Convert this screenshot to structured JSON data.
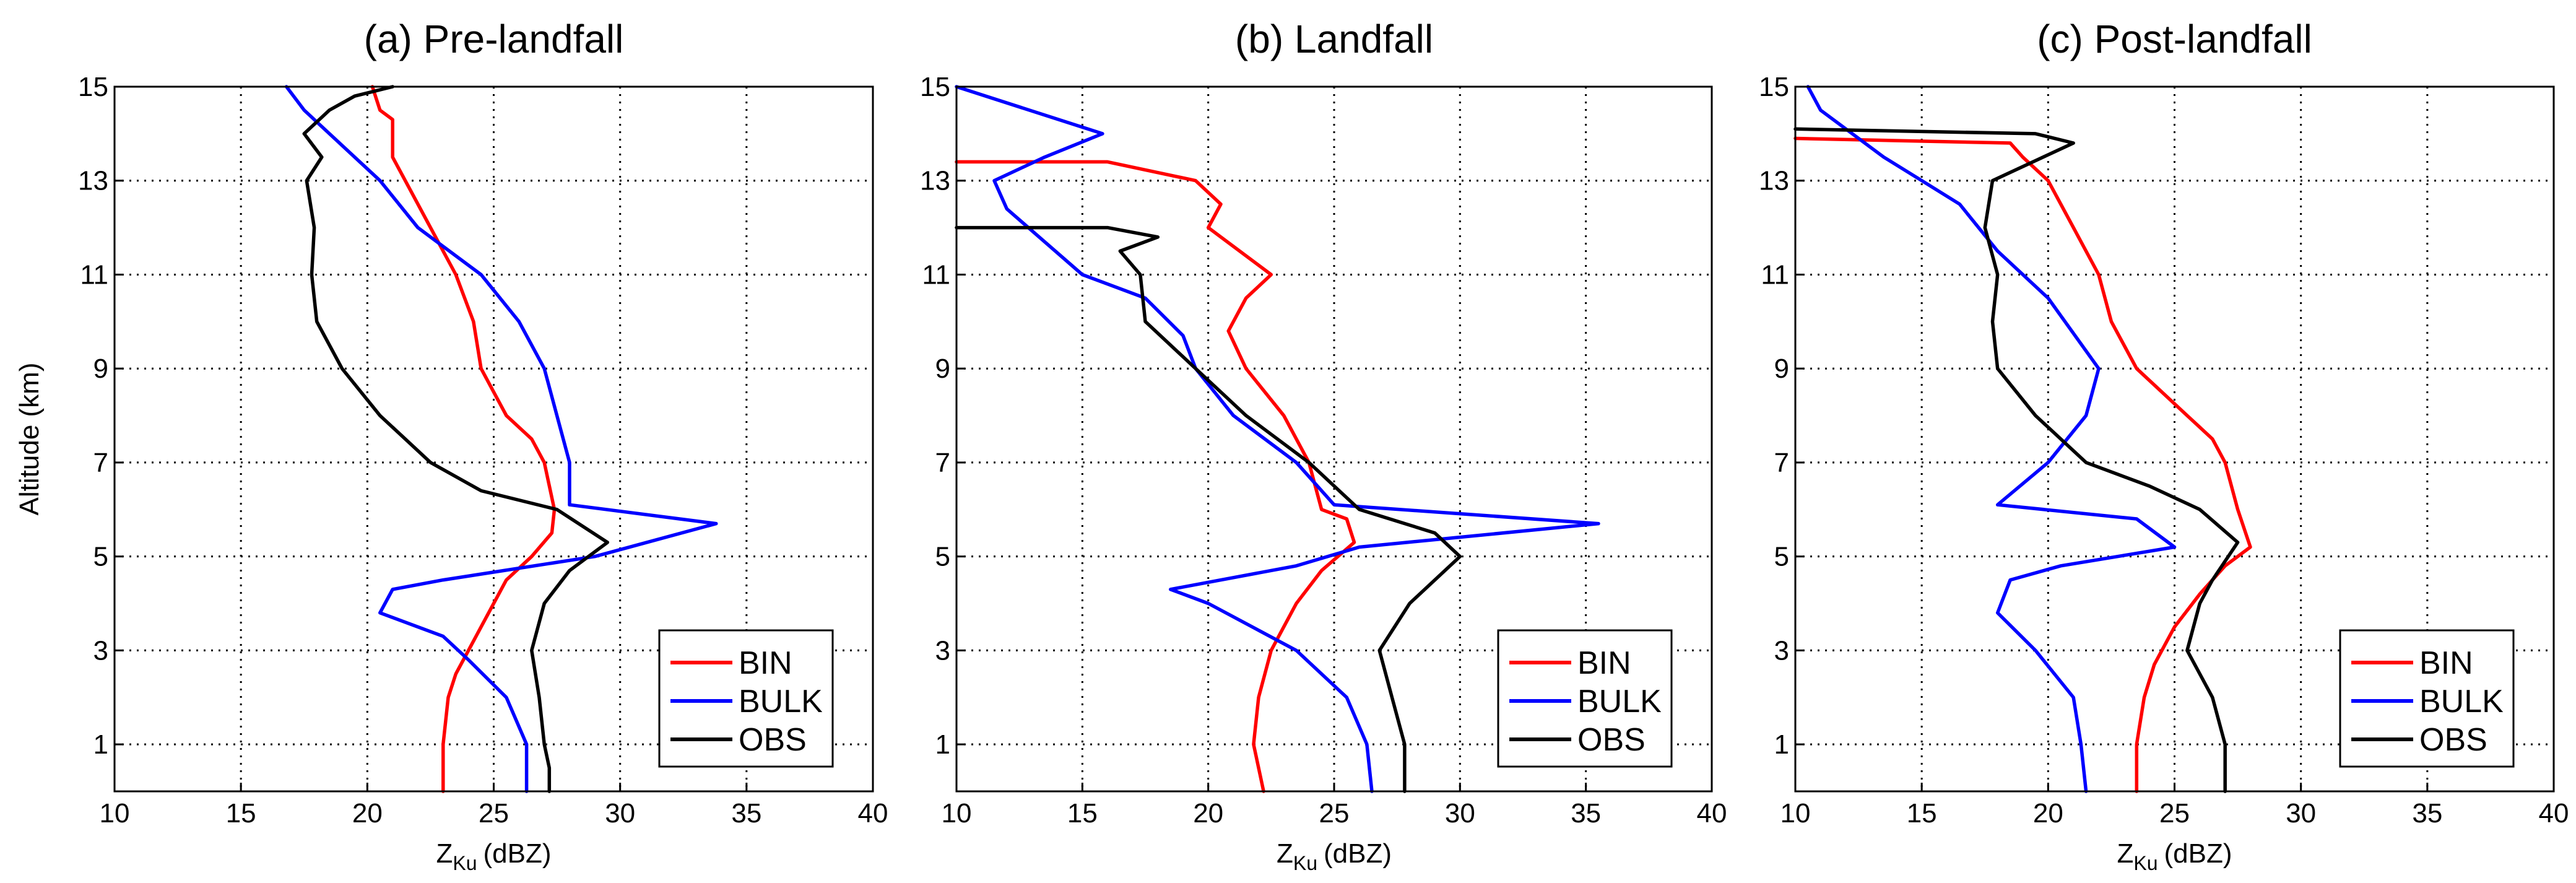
{
  "chart_data": [
    {
      "type": "line",
      "title": "(a) Pre-landfall",
      "xlabel_main": "Z",
      "xlabel_sub": "Ku",
      "xlabel_unit": "(dBZ)",
      "ylabel": "Altitude (km)",
      "xlim": [
        10,
        40
      ],
      "ylim": [
        0,
        15
      ],
      "xticks": [
        "10",
        "15",
        "20",
        "25",
        "30",
        "35",
        "40"
      ],
      "yticks": [
        "1",
        "3",
        "5",
        "7",
        "9",
        "11",
        "13",
        "15"
      ],
      "legend": [
        "BIN",
        "BULK",
        "OBS"
      ],
      "series": [
        {
          "name": "BIN",
          "color": "#ff0000",
          "points": [
            [
              23.0,
              0
            ],
            [
              23.0,
              1
            ],
            [
              23.2,
              2
            ],
            [
              23.5,
              2.5
            ],
            [
              24.0,
              3
            ],
            [
              24.8,
              3.8
            ],
            [
              25.5,
              4.5
            ],
            [
              26.5,
              5
            ],
            [
              27.3,
              5.5
            ],
            [
              27.4,
              6
            ],
            [
              27.0,
              7
            ],
            [
              26.5,
              7.5
            ],
            [
              25.5,
              8
            ],
            [
              24.5,
              9
            ],
            [
              24.2,
              10
            ],
            [
              23.5,
              11
            ],
            [
              22.5,
              12
            ],
            [
              21.5,
              13
            ],
            [
              21.0,
              13.5
            ],
            [
              21.0,
              14.3
            ],
            [
              20.5,
              14.5
            ],
            [
              20.2,
              15
            ]
          ]
        },
        {
          "name": "BULK",
          "color": "#0000ff",
          "points": [
            [
              26.3,
              0
            ],
            [
              26.3,
              1
            ],
            [
              25.5,
              2
            ],
            [
              24.0,
              2.8
            ],
            [
              23.0,
              3.3
            ],
            [
              20.5,
              3.8
            ],
            [
              21.0,
              4.3
            ],
            [
              23.0,
              4.5
            ],
            [
              29.0,
              5
            ],
            [
              33.8,
              5.7
            ],
            [
              28.0,
              6.1
            ],
            [
              28.0,
              7
            ],
            [
              27.5,
              8
            ],
            [
              27.0,
              9
            ],
            [
              26.0,
              10
            ],
            [
              24.5,
              11
            ],
            [
              22.0,
              12
            ],
            [
              20.5,
              13
            ],
            [
              18.5,
              14
            ],
            [
              17.5,
              14.5
            ],
            [
              16.8,
              15
            ]
          ]
        },
        {
          "name": "OBS",
          "color": "#000000",
          "points": [
            [
              27.2,
              0
            ],
            [
              27.2,
              0.5
            ],
            [
              27.0,
              1
            ],
            [
              26.8,
              2
            ],
            [
              26.5,
              3
            ],
            [
              27.0,
              4
            ],
            [
              28.0,
              4.7
            ],
            [
              29.5,
              5.3
            ],
            [
              27.5,
              6
            ],
            [
              24.5,
              6.4
            ],
            [
              22.5,
              7
            ],
            [
              20.5,
              8
            ],
            [
              19.0,
              9
            ],
            [
              18.0,
              10
            ],
            [
              17.8,
              11
            ],
            [
              17.9,
              12
            ],
            [
              17.6,
              13
            ],
            [
              18.2,
              13.5
            ],
            [
              17.5,
              14
            ],
            [
              18.5,
              14.5
            ],
            [
              19.5,
              14.8
            ],
            [
              21.0,
              15
            ]
          ]
        }
      ]
    },
    {
      "type": "line",
      "title": "(b) Landfall",
      "xlabel_main": "Z",
      "xlabel_sub": "Ku",
      "xlabel_unit": "(dBZ)",
      "ylabel": "",
      "xlim": [
        10,
        40
      ],
      "ylim": [
        0,
        15
      ],
      "xticks": [
        "10",
        "15",
        "20",
        "25",
        "30",
        "35",
        "40"
      ],
      "yticks": [
        "1",
        "3",
        "5",
        "7",
        "9",
        "11",
        "13",
        "15"
      ],
      "legend": [
        "BIN",
        "BULK",
        "OBS"
      ],
      "series": [
        {
          "name": "BIN",
          "color": "#ff0000",
          "points": [
            [
              22.2,
              0
            ],
            [
              21.8,
              1
            ],
            [
              22.0,
              2
            ],
            [
              22.5,
              3
            ],
            [
              23.5,
              4
            ],
            [
              24.5,
              4.7
            ],
            [
              25.8,
              5.3
            ],
            [
              25.5,
              5.8
            ],
            [
              24.5,
              6
            ],
            [
              24.0,
              7
            ],
            [
              23.0,
              8
            ],
            [
              21.5,
              9
            ],
            [
              20.8,
              9.8
            ],
            [
              21.5,
              10.5
            ],
            [
              22.5,
              11
            ],
            [
              20.0,
              12
            ],
            [
              20.5,
              12.5
            ],
            [
              19.5,
              13
            ],
            [
              16.0,
              13.4
            ],
            [
              10.0,
              13.4
            ]
          ]
        },
        {
          "name": "BULK",
          "color": "#0000ff",
          "points": [
            [
              26.5,
              0
            ],
            [
              26.3,
              1
            ],
            [
              25.5,
              2
            ],
            [
              23.5,
              3
            ],
            [
              20.0,
              4
            ],
            [
              18.5,
              4.3
            ],
            [
              23.5,
              4.8
            ],
            [
              26.0,
              5.2
            ],
            [
              35.5,
              5.7
            ],
            [
              25.0,
              6.1
            ],
            [
              23.5,
              7
            ],
            [
              21.0,
              8
            ],
            [
              19.5,
              9
            ],
            [
              19.0,
              9.7
            ],
            [
              17.5,
              10.5
            ],
            [
              15.0,
              11
            ],
            [
              12.0,
              12.4
            ],
            [
              11.5,
              13
            ],
            [
              13.5,
              13.5
            ],
            [
              15.8,
              14
            ],
            [
              10.0,
              15
            ]
          ]
        },
        {
          "name": "OBS",
          "color": "#000000",
          "points": [
            [
              27.8,
              0
            ],
            [
              27.8,
              1
            ],
            [
              27.3,
              2
            ],
            [
              26.8,
              3
            ],
            [
              28.0,
              4
            ],
            [
              30.0,
              5
            ],
            [
              29.0,
              5.5
            ],
            [
              26.0,
              6
            ],
            [
              24.0,
              7
            ],
            [
              21.5,
              8
            ],
            [
              19.5,
              9
            ],
            [
              17.5,
              10
            ],
            [
              17.3,
              11
            ],
            [
              16.5,
              11.5
            ],
            [
              18.0,
              11.8
            ],
            [
              16.0,
              12
            ],
            [
              10.0,
              12
            ]
          ]
        }
      ]
    },
    {
      "type": "line",
      "title": "(c) Post-landfall",
      "xlabel_main": "Z",
      "xlabel_sub": "Ku",
      "xlabel_unit": "(dBZ)",
      "ylabel": "",
      "xlim": [
        10,
        40
      ],
      "ylim": [
        0,
        15
      ],
      "xticks": [
        "10",
        "15",
        "20",
        "25",
        "30",
        "35",
        "40"
      ],
      "yticks": [
        "1",
        "3",
        "5",
        "7",
        "9",
        "11",
        "13",
        "15"
      ],
      "legend": [
        "BIN",
        "BULK",
        "OBS"
      ],
      "series": [
        {
          "name": "BIN",
          "color": "#ff0000",
          "points": [
            [
              23.5,
              0
            ],
            [
              23.5,
              1
            ],
            [
              23.8,
              2
            ],
            [
              24.2,
              2.7
            ],
            [
              25.0,
              3.5
            ],
            [
              26.0,
              4.2
            ],
            [
              27.0,
              4.8
            ],
            [
              28.0,
              5.2
            ],
            [
              27.5,
              6
            ],
            [
              27.0,
              7
            ],
            [
              26.5,
              7.5
            ],
            [
              25.5,
              8
            ],
            [
              23.5,
              9
            ],
            [
              22.5,
              10
            ],
            [
              22.0,
              11
            ],
            [
              21.0,
              12
            ],
            [
              20.0,
              13
            ],
            [
              19.0,
              13.5
            ],
            [
              18.5,
              13.8
            ],
            [
              10.0,
              13.9
            ]
          ]
        },
        {
          "name": "BULK",
          "color": "#0000ff",
          "points": [
            [
              21.5,
              0
            ],
            [
              21.3,
              1
            ],
            [
              21.0,
              2
            ],
            [
              19.5,
              3
            ],
            [
              18.0,
              3.8
            ],
            [
              18.5,
              4.5
            ],
            [
              20.5,
              4.8
            ],
            [
              25.0,
              5.2
            ],
            [
              23.5,
              5.8
            ],
            [
              18.0,
              6.1
            ],
            [
              20.0,
              7
            ],
            [
              21.5,
              8
            ],
            [
              22.0,
              9
            ],
            [
              20.0,
              10.5
            ],
            [
              18.0,
              11.5
            ],
            [
              16.5,
              12.5
            ],
            [
              15.0,
              13
            ],
            [
              13.5,
              13.5
            ],
            [
              11.0,
              14.5
            ],
            [
              10.5,
              15
            ]
          ]
        },
        {
          "name": "OBS",
          "color": "#000000",
          "points": [
            [
              27.0,
              0
            ],
            [
              27.0,
              1
            ],
            [
              26.5,
              2
            ],
            [
              25.5,
              3
            ],
            [
              26.0,
              4
            ],
            [
              26.5,
              4.5
            ],
            [
              27.5,
              5.3
            ],
            [
              26.0,
              6
            ],
            [
              24.0,
              6.5
            ],
            [
              21.5,
              7
            ],
            [
              19.5,
              8
            ],
            [
              18.0,
              9
            ],
            [
              17.8,
              10
            ],
            [
              18.0,
              11
            ],
            [
              17.5,
              12
            ],
            [
              17.8,
              13
            ],
            [
              21.0,
              13.8
            ],
            [
              19.5,
              14
            ],
            [
              10.0,
              14.1
            ]
          ]
        }
      ]
    }
  ]
}
